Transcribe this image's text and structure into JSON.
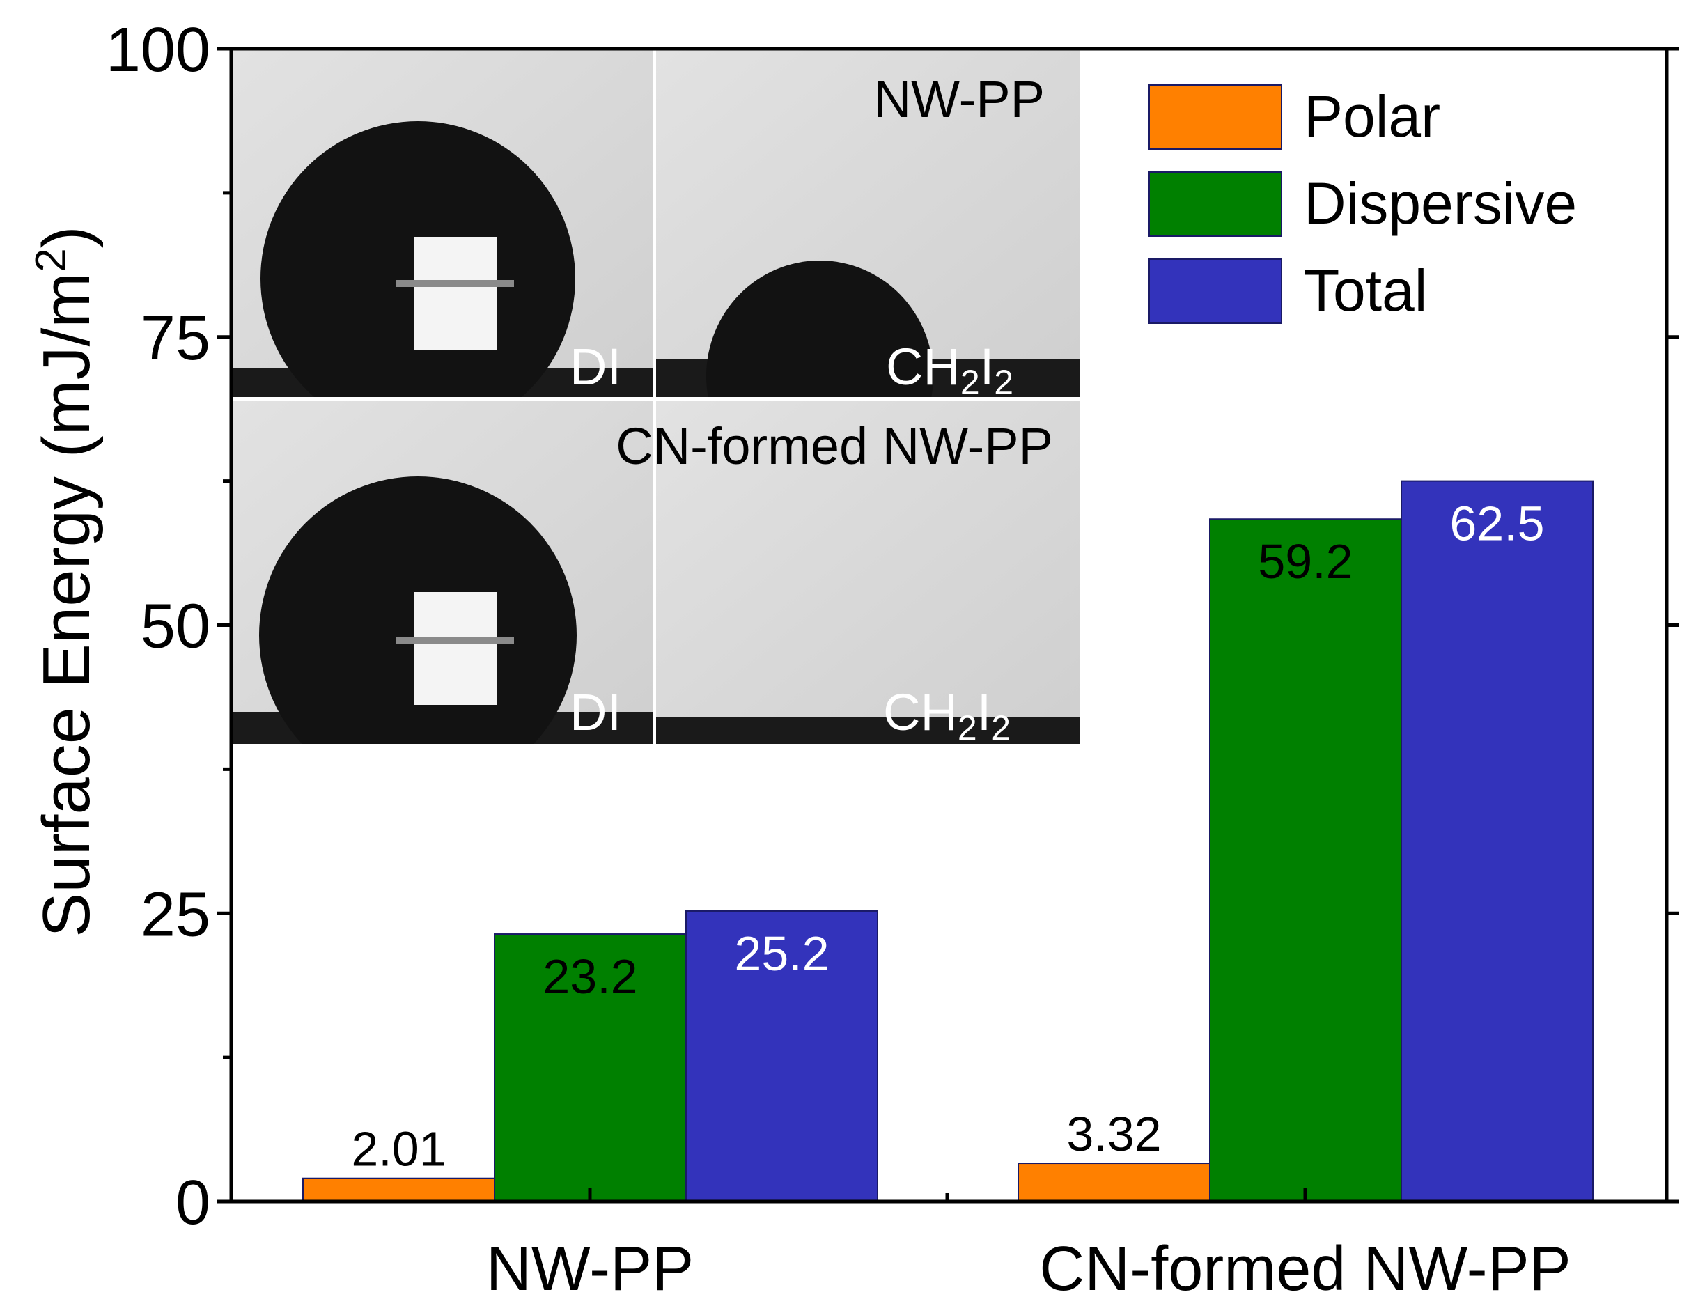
{
  "chart_data": {
    "type": "bar",
    "title": "",
    "xlabel": "",
    "ylabel": "Surface Energy (mJ/m",
    "ylabel_sup": "2",
    "ylabel_close": ")",
    "ylim": [
      0,
      100
    ],
    "yticks": [
      0,
      25,
      50,
      75,
      100
    ],
    "yticks_minor": [
      12.5,
      37.5,
      62.5,
      87.5
    ],
    "grid": false,
    "legend_position": "top-right",
    "categories": [
      "NW-PP",
      "CN-formed NW-PP"
    ],
    "series": [
      {
        "name": "Polar",
        "color": "#ff8000",
        "label_color": "#000000",
        "label_position": "above",
        "values": [
          2.01,
          3.32
        ],
        "labels": [
          "2.01",
          "3.32"
        ]
      },
      {
        "name": "Dispersive",
        "color": "#008000",
        "label_color": "#000000",
        "label_position": "inside",
        "values": [
          23.2,
          59.2
        ],
        "labels": [
          "23.2",
          "59.2"
        ]
      },
      {
        "name": "Total",
        "color": "#3333bb",
        "label_color": "#ffffff",
        "label_position": "inside",
        "values": [
          25.2,
          62.5
        ],
        "labels": [
          "25.2",
          "62.5"
        ]
      }
    ]
  },
  "inset": {
    "top_title": "NW-PP",
    "bottom_title": "CN-formed NW-PP",
    "left_label": "DI",
    "right_label_main": "CH",
    "right_label_sub1": "2",
    "right_label_mid": "I",
    "right_label_sub2": "2"
  }
}
